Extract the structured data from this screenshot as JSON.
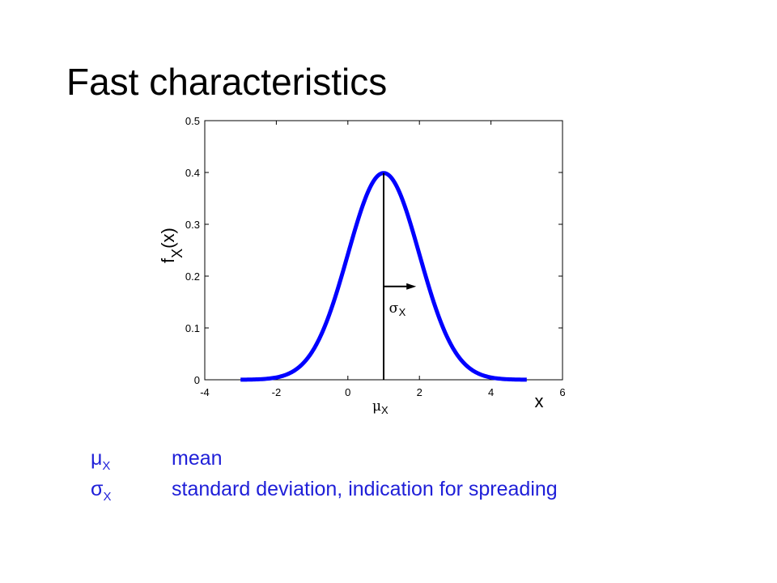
{
  "slide": {
    "title": "Fast characteristics"
  },
  "colors": {
    "curve": "#0000ff",
    "legend_text": "#1f1fd8",
    "axes": "#000000"
  },
  "chart_data": {
    "type": "line",
    "title": "",
    "xlabel": "x",
    "ylabel": "f_X(x)",
    "xlim": [
      -4,
      6
    ],
    "ylim": [
      0,
      0.5
    ],
    "xticks": [
      "-4",
      "-2",
      "0",
      "2",
      "4",
      "6"
    ],
    "yticks": [
      "0",
      "0.1",
      "0.2",
      "0.3",
      "0.4",
      "0.5"
    ],
    "series": [
      {
        "distribution": "normal",
        "mean": 1,
        "std": 1,
        "x_range": [
          -3,
          5
        ],
        "color": "#0000ff"
      }
    ],
    "annotations": {
      "mean_label": "μ",
      "mean_subscript": "X",
      "std_label": "σ",
      "std_subscript": "X"
    },
    "grid": false
  },
  "legend": [
    {
      "symbol": "μ",
      "subscript": "X",
      "description": "mean"
    },
    {
      "symbol": "σ",
      "subscript": "X",
      "description": "standard deviation, indication for spreading"
    }
  ]
}
